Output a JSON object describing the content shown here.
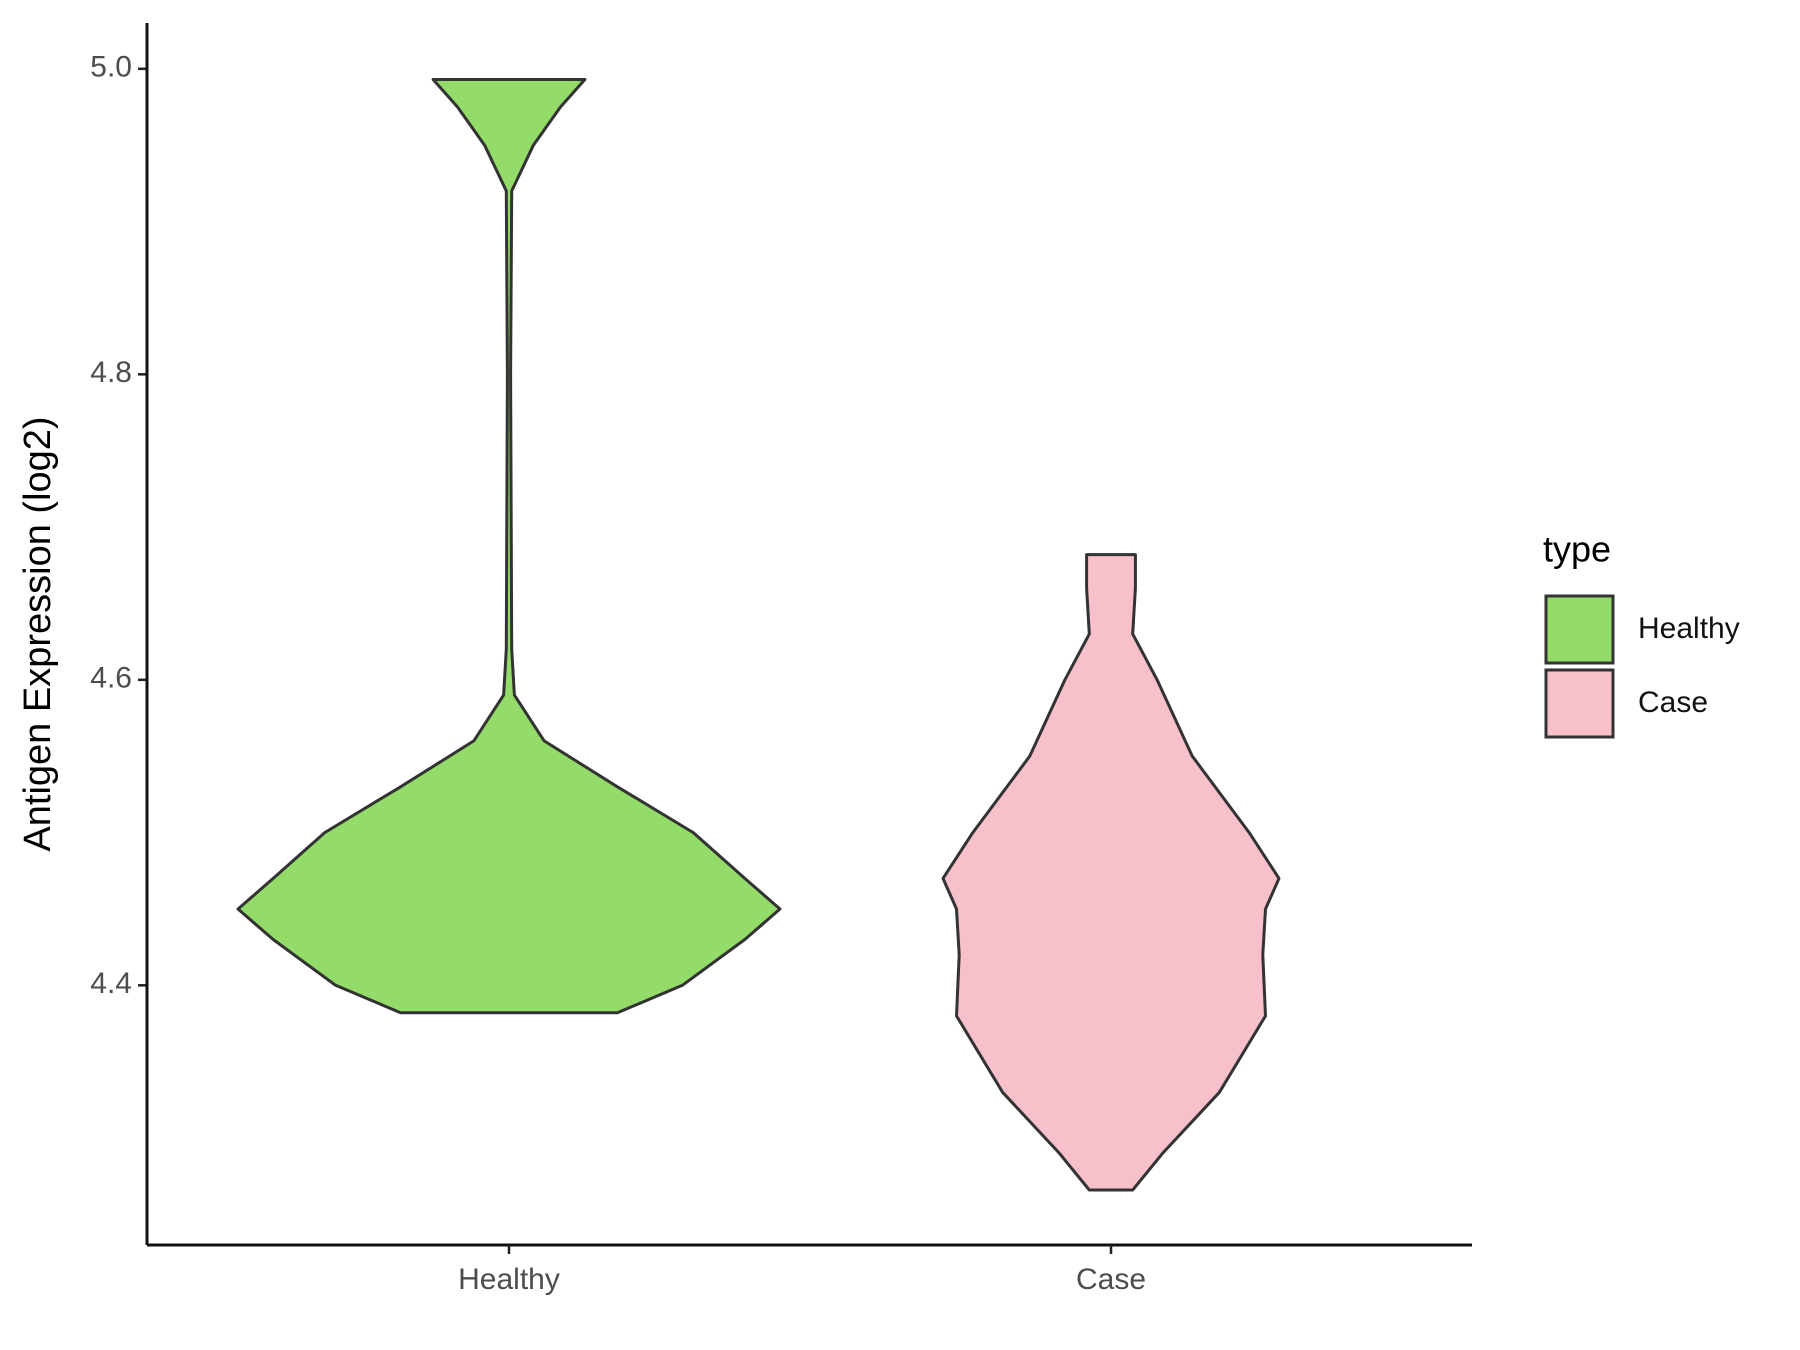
{
  "chart_data": {
    "type": "violin",
    "y_label": "Antigen Expression (log2)",
    "categories": [
      "Healthy",
      "Case"
    ],
    "legend_title": "type",
    "series": [
      {
        "name": "Healthy",
        "color": "#93dc6a",
        "y": [
          4.382,
          4.4,
          4.43,
          4.45,
          4.47,
          4.5,
          4.53,
          4.56,
          4.59,
          4.62,
          4.8,
          4.92,
          4.95,
          4.975,
          4.993
        ],
        "width": [
          0.4,
          0.64,
          0.87,
          1.0,
          0.87,
          0.68,
          0.4,
          0.13,
          0.02,
          0.01,
          0.006,
          0.01,
          0.09,
          0.19,
          0.28
        ]
      },
      {
        "name": "Case",
        "color": "#f7c0cb",
        "y": [
          4.266,
          4.29,
          4.33,
          4.38,
          4.42,
          4.45,
          4.47,
          4.5,
          4.55,
          4.6,
          4.63,
          4.66,
          4.682
        ],
        "width": [
          0.08,
          0.19,
          0.4,
          0.57,
          0.56,
          0.57,
          0.62,
          0.51,
          0.3,
          0.17,
          0.08,
          0.09,
          0.09
        ]
      }
    ],
    "ylim": [
      4.23,
      5.03
    ],
    "yticks": [
      4.4,
      4.6,
      4.8,
      {
        "value": 5,
        "label": "5.0"
      }
    ]
  }
}
